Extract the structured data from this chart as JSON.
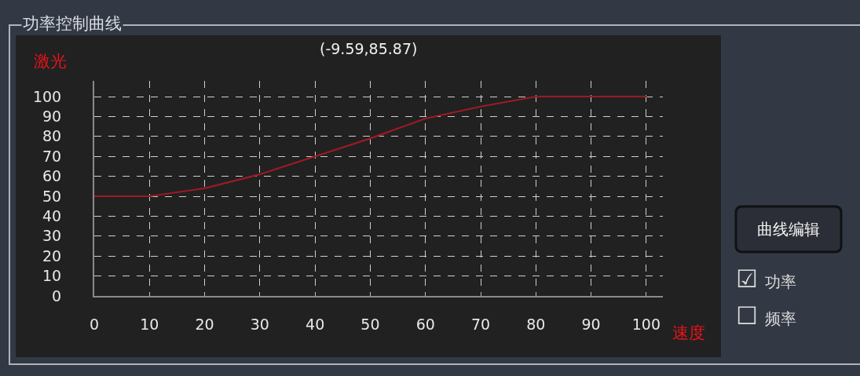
{
  "chart_data": {
    "type": "line",
    "title": "功率控制曲线",
    "xlabel": "速度",
    "ylabel": "激光",
    "annotations": [
      "(-9.59,85.87)",
      "曲线编辑",
      "☑功率",
      "☐频率"
    ],
    "x": [
      0,
      10,
      20,
      30,
      40,
      50,
      60,
      70,
      80,
      90,
      100
    ],
    "series": [
      {
        "color": "#9b1b25",
        "values": [
          50,
          50,
          54,
          61,
          70,
          79,
          89,
          95,
          100,
          100,
          100
        ]
      }
    ],
    "xlim": [
      0,
      103
    ],
    "ylim": [
      0,
      108
    ],
    "xticks": [
      0,
      10,
      20,
      30,
      40,
      50,
      60,
      70,
      80,
      90,
      100
    ],
    "yticks": [
      0,
      10,
      20,
      30,
      40,
      50,
      60,
      70,
      80,
      90,
      100
    ],
    "grid": true
  }
}
